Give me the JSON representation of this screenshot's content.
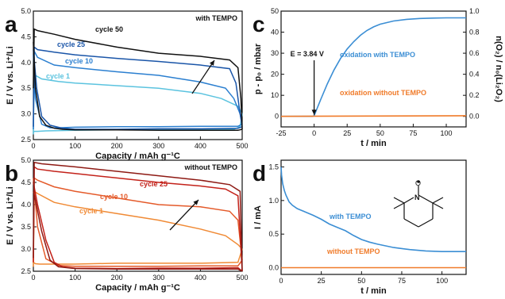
{
  "colors": {
    "axis": "#111111",
    "with_tempo": "#3b8ed4",
    "without_tempo": "#f07b2a",
    "cycle1_a": "#5bc3df",
    "cycle10_a": "#2b7fd0",
    "cycle25_a": "#1a55a8",
    "cycle50_a": "#111111",
    "cycle1_b": "#f08a35",
    "cycle10_b": "#e45a2a",
    "cycle25_b": "#c3221a",
    "cycle_extra_b": "#8e1a14"
  },
  "chart_data": [
    {
      "panel": "a",
      "type": "line",
      "title": "with TEMPO",
      "xlabel": "Capacity / mAh g⁻¹C",
      "ylabel": "E / V vs. Li⁺/Li",
      "xlim": [
        0,
        500
      ],
      "ylim": [
        2.5,
        5.0
      ],
      "xticks": [
        "0",
        "100",
        "200",
        "300",
        "400",
        "500"
      ],
      "yticks": [
        "2.5",
        "3.0",
        "3.5",
        "4.0",
        "4.5",
        "5.0"
      ],
      "series": [
        {
          "name": "cycle 1",
          "color_key": "cycle1_a",
          "charge": {
            "x": [
              0,
              2,
              5,
              20,
              60,
              100,
              200,
              300,
              400,
              450,
              490,
              500
            ],
            "y": [
              2.6,
              3.9,
              3.75,
              3.68,
              3.63,
              3.6,
              3.55,
              3.5,
              3.4,
              3.3,
              3.15,
              3.0
            ]
          },
          "discharge": {
            "x": [
              500,
              495,
              480,
              400,
              300,
              200,
              100,
              30,
              10,
              3,
              0
            ],
            "y": [
              3.0,
              2.75,
              2.7,
              2.7,
              2.7,
              2.69,
              2.68,
              2.67,
              2.66,
              2.66,
              2.65
            ]
          }
        },
        {
          "name": "cycle 10",
          "color_key": "cycle10_a",
          "charge": {
            "x": [
              0,
              2,
              10,
              50,
              100,
              200,
              300,
              400,
              460,
              480,
              495,
              500
            ],
            "y": [
              2.7,
              4.22,
              4.1,
              3.95,
              3.9,
              3.82,
              3.75,
              3.62,
              3.5,
              3.3,
              3.0,
              2.8
            ]
          },
          "discharge": {
            "x": [
              500,
              490,
              400,
              300,
              200,
              100,
              60,
              40,
              20,
              5,
              0
            ],
            "y": [
              2.8,
              2.76,
              2.76,
              2.75,
              2.75,
              2.74,
              2.73,
              2.73,
              2.8,
              3.3,
              4.15
            ]
          }
        },
        {
          "name": "cycle 25",
          "color_key": "cycle25_a",
          "charge": {
            "x": [
              0,
              2,
              10,
              50,
              100,
              200,
              300,
              400,
              470,
              485,
              495,
              500
            ],
            "y": [
              2.75,
              4.3,
              4.25,
              4.2,
              4.15,
              4.08,
              4.02,
              3.95,
              3.88,
              3.6,
              3.0,
              2.75
            ]
          },
          "discharge": {
            "x": [
              500,
              490,
              400,
              300,
              200,
              100,
              70,
              40,
              20,
              8,
              0
            ],
            "y": [
              2.75,
              2.72,
              2.71,
              2.71,
              2.7,
              2.7,
              2.72,
              2.78,
              2.95,
              3.5,
              4.25
            ]
          }
        },
        {
          "name": "cycle 50",
          "color_key": "cycle50_a",
          "charge": {
            "x": [
              0,
              2,
              10,
              50,
              100,
              200,
              300,
              400,
              470,
              490,
              497,
              500
            ],
            "y": [
              3.5,
              4.65,
              4.62,
              4.55,
              4.45,
              4.3,
              4.18,
              4.12,
              4.05,
              3.9,
              3.3,
              2.7
            ]
          },
          "discharge": {
            "x": [
              500,
              490,
              400,
              300,
              200,
              100,
              70,
              50,
              30,
              15,
              5,
              0
            ],
            "y": [
              2.7,
              2.68,
              2.68,
              2.68,
              2.69,
              2.69,
              2.7,
              2.72,
              2.78,
              2.95,
              3.5,
              4.4
            ]
          }
        }
      ]
    },
    {
      "panel": "b",
      "type": "line",
      "title": "without TEMPO",
      "xlabel": "Capacity / mAh g⁻¹C",
      "ylabel": "E / V vs. Li⁺/Li",
      "xlim": [
        0,
        500
      ],
      "ylim": [
        2.5,
        5.0
      ],
      "xticks": [
        "0",
        "100",
        "200",
        "300",
        "400",
        "500"
      ],
      "yticks": [
        "2.5",
        "3.0",
        "3.5",
        "4.0",
        "4.5",
        "5.0"
      ],
      "series": [
        {
          "name": "cycle 1",
          "color_key": "cycle1_b",
          "charge": {
            "x": [
              0,
              2,
              10,
              50,
              100,
              200,
              300,
              400,
              460,
              490,
              500
            ],
            "y": [
              2.6,
              4.3,
              4.25,
              4.05,
              3.95,
              3.8,
              3.65,
              3.45,
              3.3,
              3.1,
              3.0
            ]
          },
          "discharge": {
            "x": [
              500,
              490,
              400,
              300,
              200,
              100,
              40,
              15,
              5,
              0
            ],
            "y": [
              3.0,
              2.7,
              2.68,
              2.68,
              2.68,
              2.66,
              2.66,
              2.66,
              2.67,
              2.7
            ]
          }
        },
        {
          "name": "cycle 10",
          "color_key": "cycle10_b",
          "charge": {
            "x": [
              0,
              2,
              10,
              50,
              100,
              200,
              300,
              400,
              470,
              490,
              500
            ],
            "y": [
              2.7,
              4.6,
              4.55,
              4.4,
              4.3,
              4.15,
              4.0,
              3.95,
              3.85,
              3.65,
              2.75
            ]
          },
          "discharge": {
            "x": [
              500,
              490,
              400,
              300,
              200,
              100,
              60,
              30,
              10,
              0
            ],
            "y": [
              2.75,
              2.62,
              2.62,
              2.61,
              2.61,
              2.61,
              2.63,
              2.78,
              3.5,
              4.6
            ]
          }
        },
        {
          "name": "cycle 25",
          "color_key": "cycle25_b",
          "charge": {
            "x": [
              0,
              2,
              10,
              50,
              100,
              200,
              300,
              400,
              460,
              490,
              500
            ],
            "y": [
              2.7,
              4.85,
              4.8,
              4.75,
              4.7,
              4.6,
              4.5,
              4.42,
              4.35,
              4.2,
              2.5
            ]
          },
          "discharge": {
            "x": [
              500,
              490,
              400,
              300,
              200,
              100,
              70,
              50,
              30,
              10,
              0
            ],
            "y": [
              2.5,
              2.58,
              2.57,
              2.57,
              2.56,
              2.57,
              2.6,
              2.7,
              3.2,
              4.0,
              4.5
            ]
          }
        },
        {
          "name": "",
          "color_key": "cycle_extra_b",
          "charge": {
            "x": [
              0,
              2,
              20,
              100,
              200,
              300,
              400,
              470,
              495,
              500
            ],
            "y": [
              2.8,
              4.95,
              4.92,
              4.85,
              4.75,
              4.65,
              4.55,
              4.45,
              4.3,
              2.5
            ]
          },
          "discharge": {
            "x": [
              500,
              490,
              400,
              300,
              200,
              100,
              60,
              40,
              20,
              5,
              0
            ],
            "y": [
              2.5,
              2.55,
              2.55,
              2.55,
              2.55,
              2.56,
              2.6,
              2.75,
              3.4,
              4.1,
              4.3
            ]
          }
        }
      ]
    },
    {
      "panel": "c",
      "type": "line",
      "xlabel": "t / min",
      "ylabel": "p - p₀ / mbar",
      "ylabel_right": "n(O₂) / n₀(Li₂O₂)",
      "xlim": [
        -25,
        115
      ],
      "ylim": [
        -5,
        50
      ],
      "ylim_right": [
        -0.1,
        1.0
      ],
      "xticks": [
        "-25",
        "0",
        "25",
        "50",
        "75",
        "100"
      ],
      "yticks": [
        "0",
        "10",
        "20",
        "30",
        "40",
        "50"
      ],
      "yticks_right": [
        "0.0",
        "0.2",
        "0.4",
        "0.6",
        "0.8",
        "1.0"
      ],
      "annotations": [
        {
          "text": "E = 3.84 V",
          "x": 0,
          "y": 0
        }
      ],
      "series": [
        {
          "name": "oxidation with TEMPO",
          "color_key": "with_tempo",
          "x": [
            -25,
            -1,
            0,
            5,
            10,
            15,
            20,
            25,
            30,
            35,
            40,
            45,
            50,
            60,
            70,
            80,
            90,
            100,
            115
          ],
          "y": [
            0,
            0,
            0.3,
            8,
            15.5,
            22,
            27.5,
            32,
            35.5,
            38.5,
            40.8,
            42.5,
            43.8,
            45.3,
            46.1,
            46.5,
            46.7,
            46.8,
            46.8
          ]
        },
        {
          "name": "oxidation without TEMPO",
          "color_key": "without_tempo",
          "x": [
            -25,
            115
          ],
          "y": [
            0,
            0.3
          ]
        }
      ]
    },
    {
      "panel": "d",
      "type": "line",
      "xlabel": "t / min",
      "ylabel": "I / mA",
      "xlim": [
        0,
        115
      ],
      "ylim": [
        -0.1,
        1.6
      ],
      "xticks": [
        "0",
        "25",
        "50",
        "75",
        "100"
      ],
      "yticks": [
        "0.0",
        "0.5",
        "1.0",
        "1.5"
      ],
      "series": [
        {
          "name": "with TEMPO",
          "color_key": "with_tempo",
          "x": [
            0,
            0.3,
            1,
            2,
            3,
            5,
            7,
            10,
            15,
            20,
            25,
            30,
            35,
            40,
            45,
            50,
            55,
            60,
            70,
            80,
            90,
            100,
            110,
            115
          ],
          "y": [
            1.5,
            1.38,
            1.25,
            1.15,
            1.08,
            0.98,
            0.93,
            0.88,
            0.83,
            0.78,
            0.72,
            0.65,
            0.6,
            0.55,
            0.48,
            0.42,
            0.38,
            0.35,
            0.3,
            0.27,
            0.25,
            0.24,
            0.24,
            0.24
          ]
        },
        {
          "name": "without TEMPO",
          "color_key": "without_tempo",
          "x": [
            0,
            115
          ],
          "y": [
            0.0,
            0.0
          ]
        }
      ]
    }
  ]
}
